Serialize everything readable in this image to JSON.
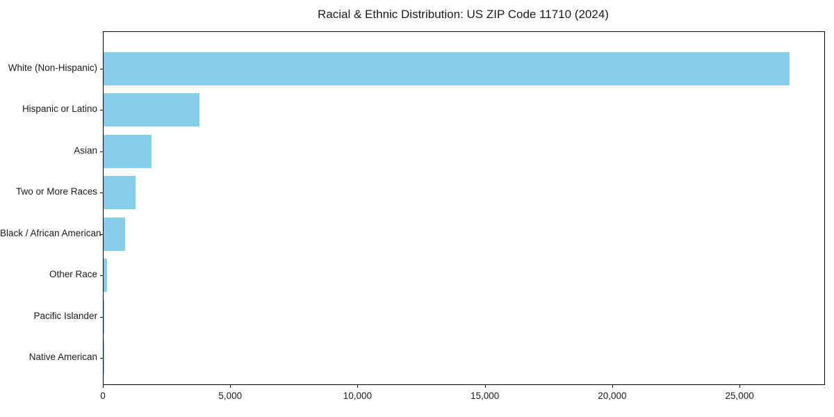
{
  "chart_data": {
    "type": "bar",
    "orientation": "horizontal",
    "title": "Racial & Ethnic Distribution: US ZIP Code 11710 (2024)",
    "categories": [
      "White (Non-Hispanic)",
      "Hispanic or Latino",
      "Asian",
      "Two or More Races",
      "Black / African American",
      "Other Race",
      "Pacific Islander",
      "Native American"
    ],
    "values": [
      26940,
      3770,
      1880,
      1250,
      840,
      130,
      25,
      8
    ],
    "xlabel": "",
    "ylabel": "",
    "xlim": [
      0,
      28300
    ],
    "xticks": {
      "values": [
        0,
        5000,
        10000,
        15000,
        20000,
        25000
      ],
      "labels": [
        "0",
        "5,000",
        "10,000",
        "15,000",
        "20,000",
        "25,000"
      ]
    },
    "bar_color": "#87CEEB",
    "spine_color": "#000000",
    "background": "#ffffff",
    "grid": false,
    "legend": "none"
  }
}
